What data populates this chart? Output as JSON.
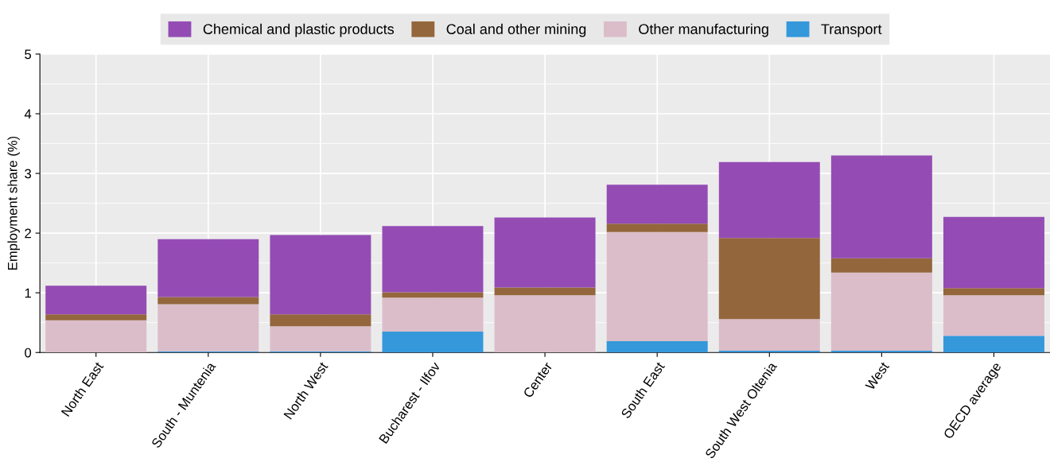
{
  "chart_data": {
    "type": "bar",
    "stacked": true,
    "ylabel": "Employment share (%)",
    "categories": [
      "North East",
      "South - Muntenia",
      "North West",
      "Bucharest - Ilfov",
      "Center",
      "South East",
      "South West Oltenia",
      "West",
      "OECD average"
    ],
    "series": [
      {
        "name": "Transport",
        "color": "#3498db",
        "values": [
          0,
          0.02,
          0.02,
          0.35,
          0,
          0.19,
          0.03,
          0.03,
          0.28
        ]
      },
      {
        "name": "Other manufacturing",
        "color": "#dbbdc9",
        "values": [
          0.54,
          0.79,
          0.42,
          0.57,
          0.96,
          1.83,
          0.53,
          1.31,
          0.68
        ]
      },
      {
        "name": "Coal and other mining",
        "color": "#94663c",
        "values": [
          0.1,
          0.12,
          0.2,
          0.09,
          0.13,
          0.14,
          1.36,
          0.24,
          0.12
        ]
      },
      {
        "name": "Chemical and plastic products",
        "color": "#944cb4",
        "values": [
          0.48,
          0.97,
          1.33,
          1.11,
          1.17,
          0.65,
          1.27,
          1.72,
          1.19
        ]
      }
    ],
    "ylim": [
      0,
      5
    ],
    "yticks": [
      0,
      1,
      2,
      3,
      4,
      5
    ],
    "grid": true,
    "legend": "top"
  }
}
